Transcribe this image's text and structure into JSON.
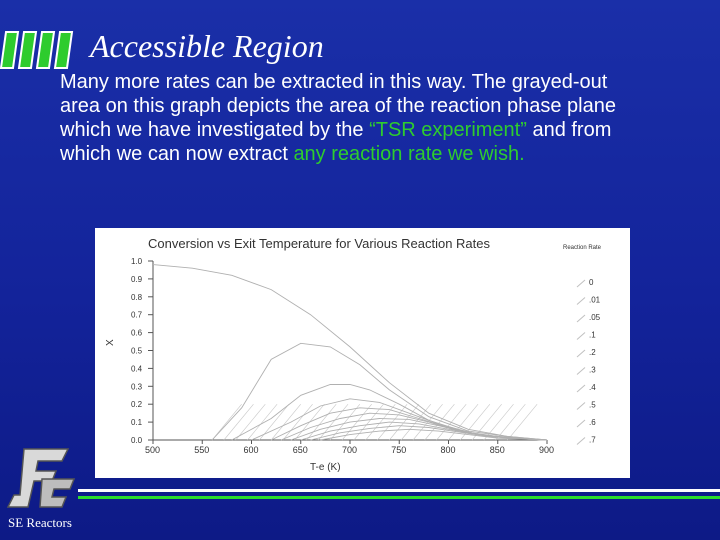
{
  "slide": {
    "title": "Accessible Region",
    "body_part1": "Many more rates can be extracted in this way. The grayed-out area on this graph depicts the area of the reaction phase plane which we have investigated by the ",
    "body_quote": "“TSR experiment”",
    "body_part2": " and from which we can now extract ",
    "body_highlight": "any reaction rate we wish.",
    "footer": "SE Reactors"
  },
  "chart_data": {
    "type": "line",
    "title": "Conversion vs Exit Temperature for Various Reaction Rates",
    "xlabel": "T-e (K)",
    "ylabel": "X",
    "legend_title": "Reaction Rate",
    "xlim": [
      500,
      900
    ],
    "ylim": [
      0.0,
      1.0
    ],
    "x_ticks": [
      "500",
      "550",
      "600",
      "650",
      "700",
      "750",
      "800",
      "850",
      "900"
    ],
    "y_ticks": [
      "0.0",
      "0.1",
      "0.2",
      "0.3",
      "0.4",
      "0.5",
      "0.6",
      "0.7",
      "0.8",
      "0.9",
      "1.0"
    ],
    "legend_position": "right",
    "series": [
      {
        "name": "0",
        "x": [
          500,
          540,
          580,
          620,
          660,
          700,
          740,
          780,
          820,
          860,
          900
        ],
        "y": [
          0.98,
          0.96,
          0.92,
          0.84,
          0.7,
          0.52,
          0.32,
          0.15,
          0.06,
          0.02,
          0.0
        ]
      },
      {
        "name": ".01",
        "x": [
          560,
          590,
          620,
          650,
          680,
          710,
          740,
          780,
          820,
          860,
          900
        ],
        "y": [
          0.0,
          0.18,
          0.45,
          0.54,
          0.52,
          0.42,
          0.28,
          0.13,
          0.05,
          0.02,
          0.0
        ]
      },
      {
        "name": ".05",
        "x": [
          580,
          620,
          650,
          680,
          700,
          720,
          750,
          780,
          820,
          860,
          900
        ],
        "y": [
          0.0,
          0.12,
          0.25,
          0.31,
          0.31,
          0.28,
          0.2,
          0.11,
          0.04,
          0.01,
          0.0
        ]
      },
      {
        "name": ".1",
        "x": [
          600,
          640,
          670,
          700,
          730,
          760,
          790,
          830,
          870,
          900
        ],
        "y": [
          0.0,
          0.1,
          0.19,
          0.23,
          0.21,
          0.15,
          0.09,
          0.03,
          0.01,
          0.0
        ]
      },
      {
        "name": ".2",
        "x": [
          620,
          650,
          680,
          710,
          740,
          770,
          800,
          840,
          880,
          900
        ],
        "y": [
          0.0,
          0.08,
          0.15,
          0.18,
          0.17,
          0.12,
          0.07,
          0.02,
          0.005,
          0.0
        ]
      },
      {
        "name": ".3",
        "x": [
          630,
          660,
          690,
          720,
          750,
          780,
          810,
          850,
          900
        ],
        "y": [
          0.0,
          0.07,
          0.12,
          0.15,
          0.14,
          0.1,
          0.05,
          0.02,
          0.0
        ]
      },
      {
        "name": ".4",
        "x": [
          640,
          670,
          700,
          730,
          760,
          790,
          820,
          860,
          900
        ],
        "y": [
          0.0,
          0.06,
          0.1,
          0.12,
          0.115,
          0.08,
          0.04,
          0.01,
          0.0
        ]
      },
      {
        "name": ".5",
        "x": [
          650,
          680,
          710,
          740,
          770,
          800,
          830,
          870,
          900
        ],
        "y": [
          0.0,
          0.05,
          0.08,
          0.1,
          0.09,
          0.06,
          0.03,
          0.01,
          0.0
        ]
      },
      {
        "name": ".6",
        "x": [
          660,
          690,
          720,
          750,
          780,
          810,
          840,
          880,
          900
        ],
        "y": [
          0.0,
          0.04,
          0.065,
          0.08,
          0.07,
          0.045,
          0.02,
          0.005,
          0.0
        ]
      },
      {
        "name": ".7",
        "x": [
          670,
          700,
          730,
          760,
          790,
          820,
          850,
          900
        ],
        "y": [
          0.0,
          0.03,
          0.05,
          0.06,
          0.05,
          0.03,
          0.01,
          0.0
        ]
      }
    ],
    "colors": {
      "curves": "#b0b0b0",
      "axis": "#555555",
      "text": "#333333"
    }
  }
}
